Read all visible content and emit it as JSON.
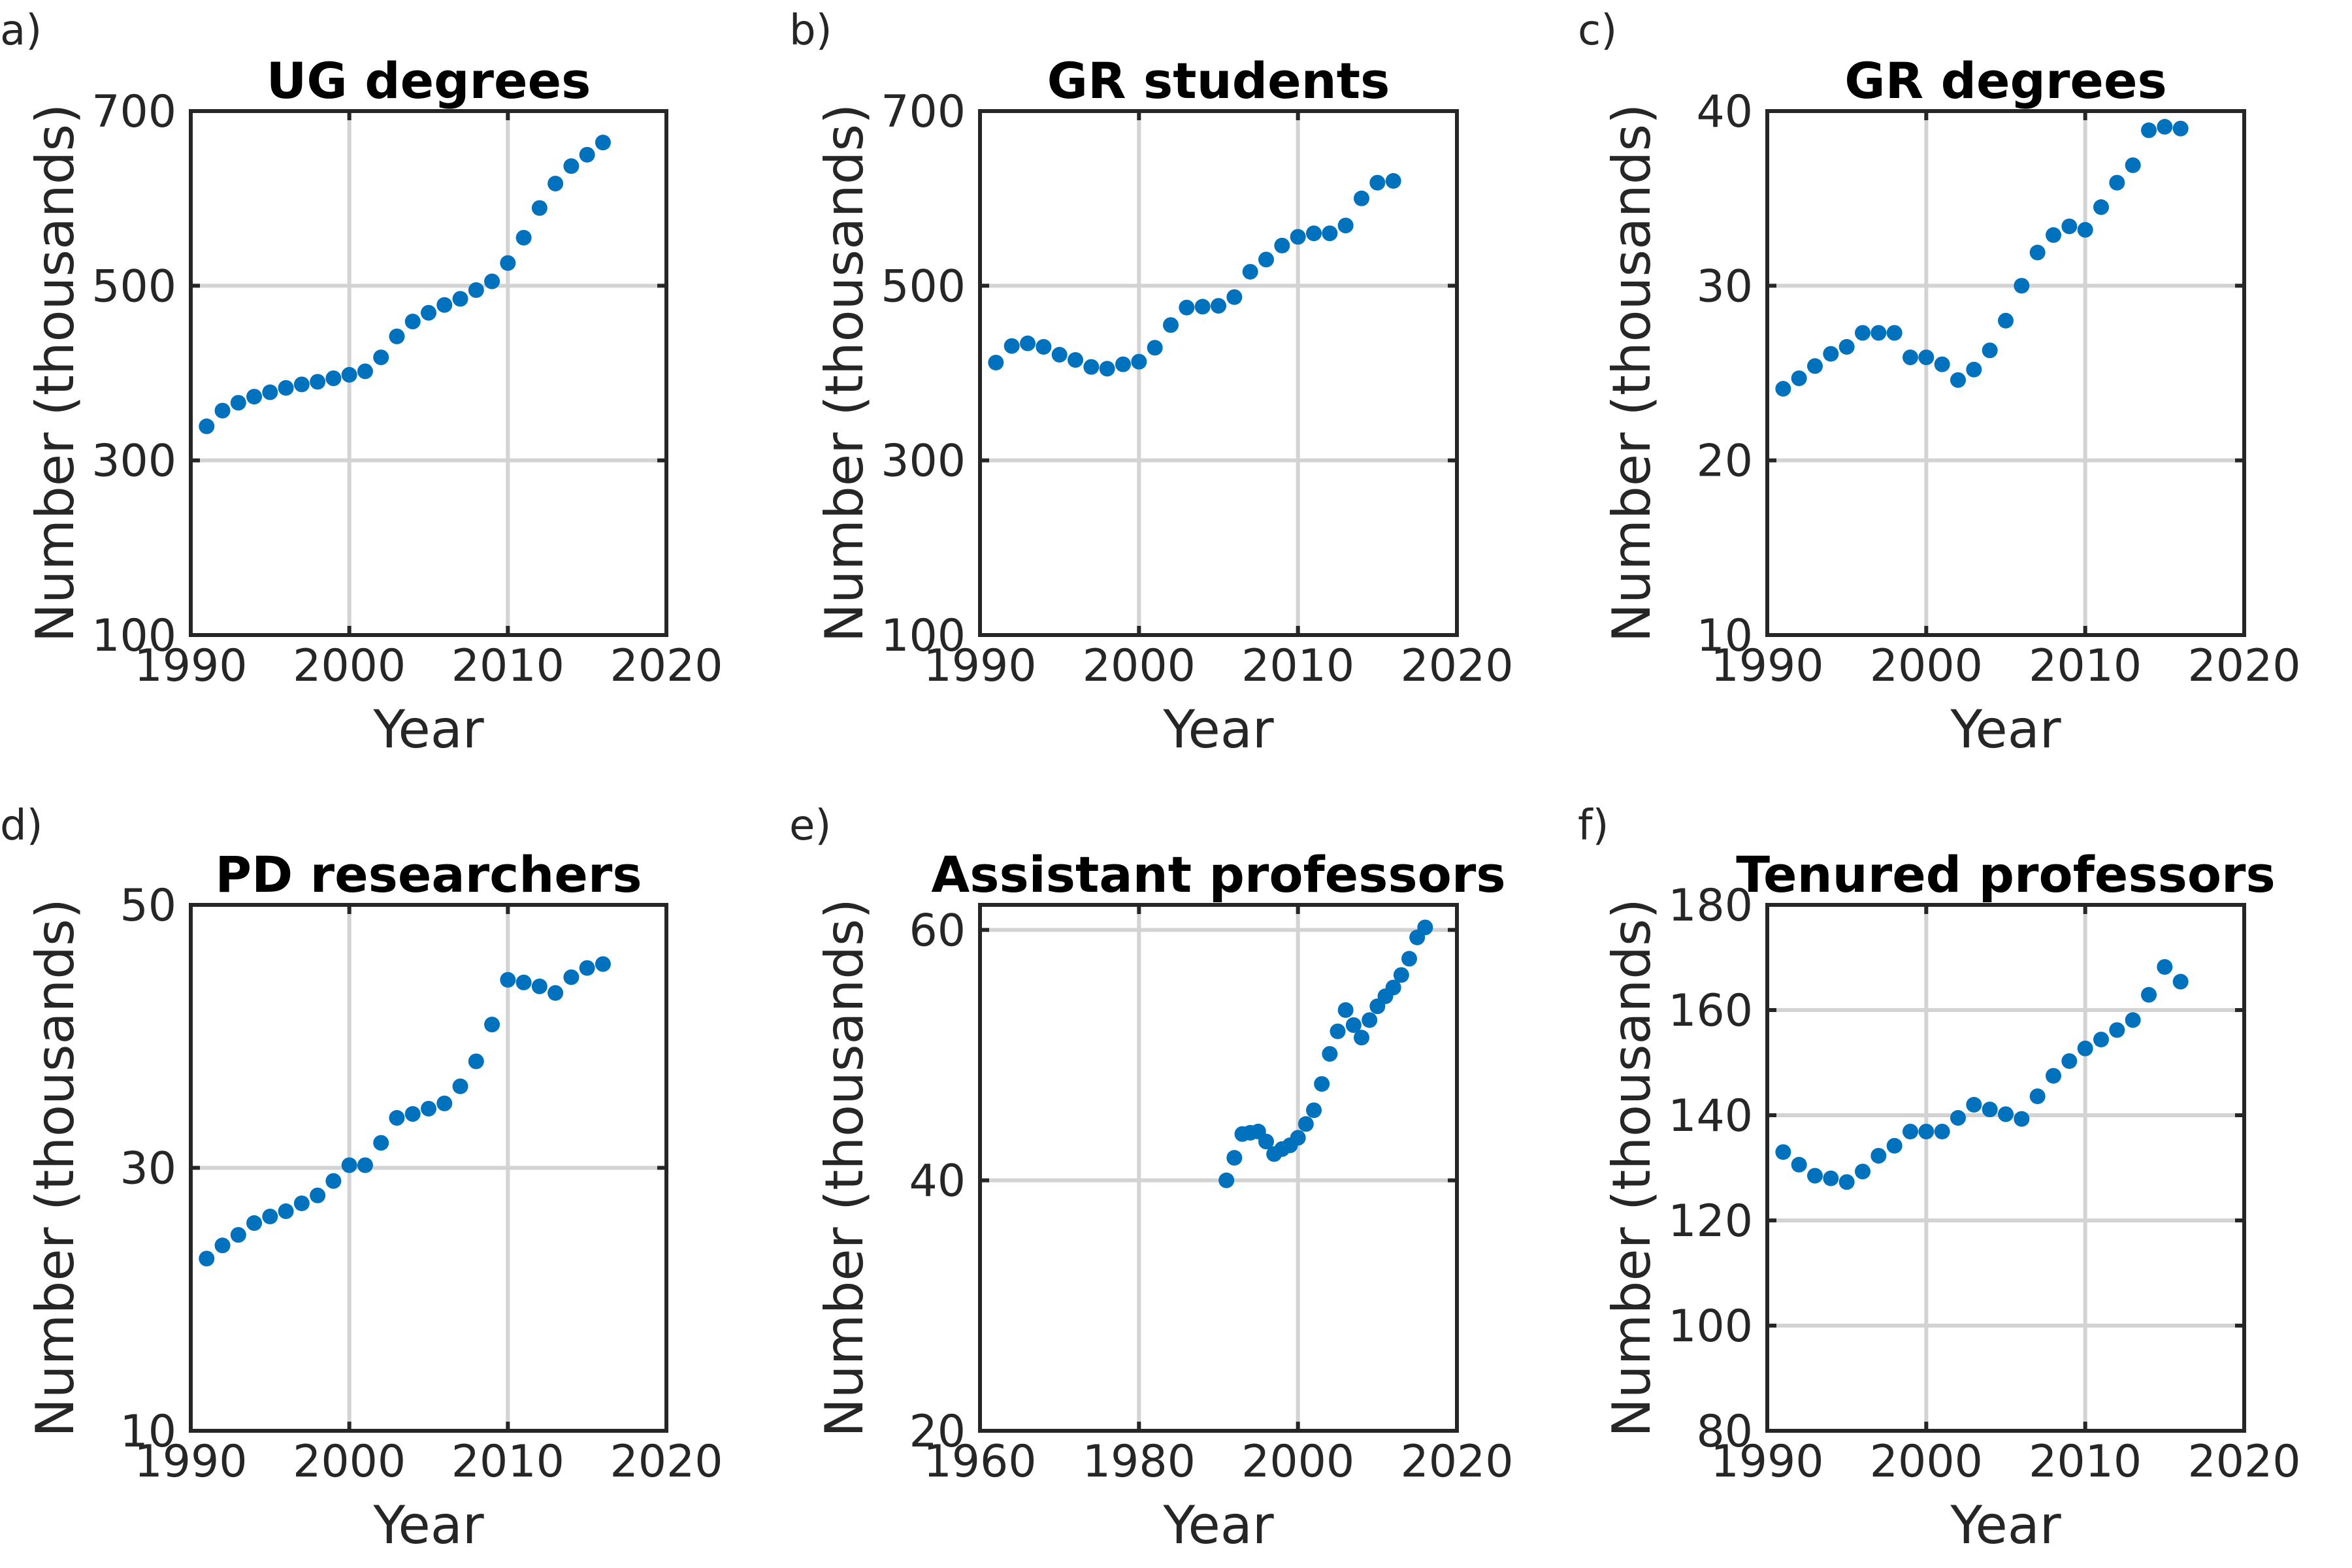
{
  "chart_data": [
    {
      "type": "scatter",
      "panel_letter": "a)",
      "title": "UG degrees",
      "xlabel": "Year",
      "ylabel": "Number (thousands)",
      "xlim": [
        1990,
        2020
      ],
      "ylim": [
        100,
        700
      ],
      "xticks": [
        1990,
        2000,
        2010,
        2020
      ],
      "yticks": [
        100,
        300,
        500,
        700
      ],
      "grid": true,
      "series": [
        {
          "color": "#0072BD",
          "x": [
            1991,
            1992,
            1993,
            1994,
            1995,
            1996,
            1997,
            1998,
            1999,
            2000,
            2001,
            2002,
            2003,
            2004,
            2005,
            2006,
            2007,
            2008,
            2009,
            2010,
            2011,
            2012,
            2013,
            2014,
            2015,
            2016
          ],
          "y": [
            339,
            357,
            366,
            373,
            378,
            383,
            387,
            390,
            394,
            398,
            402,
            418,
            442,
            459,
            469,
            478,
            485,
            495,
            505,
            526,
            555,
            589,
            617,
            637,
            650,
            664
          ]
        }
      ]
    },
    {
      "type": "scatter",
      "panel_letter": "b)",
      "title": "GR students",
      "xlabel": "Year",
      "ylabel": "Number (thousands)",
      "xlim": [
        1990,
        2020
      ],
      "ylim": [
        100,
        700
      ],
      "xticks": [
        1990,
        2000,
        2010,
        2020
      ],
      "yticks": [
        100,
        300,
        500,
        700
      ],
      "grid": true,
      "series": [
        {
          "color": "#0072BD",
          "x": [
            1991,
            1992,
            1993,
            1994,
            1995,
            1996,
            1997,
            1998,
            1999,
            2000,
            2001,
            2002,
            2003,
            2004,
            2005,
            2006,
            2007,
            2008,
            2009,
            2010,
            2011,
            2012,
            2013,
            2014,
            2015,
            2016
          ],
          "y": [
            412,
            431,
            434,
            430,
            421,
            415,
            407,
            405,
            410,
            413,
            429,
            455,
            475,
            476,
            477,
            487,
            516,
            530,
            546,
            556,
            560,
            560,
            569,
            600,
            618,
            620
          ]
        }
      ]
    },
    {
      "type": "scatter",
      "panel_letter": "c)",
      "title": "GR degrees",
      "xlabel": "Year",
      "ylabel": "Number (thousands)",
      "xlim": [
        1990,
        2020
      ],
      "ylim": [
        10,
        40
      ],
      "xticks": [
        1990,
        2000,
        2010,
        2020
      ],
      "yticks": [
        10,
        20,
        30,
        40
      ],
      "grid": true,
      "series": [
        {
          "color": "#0072BD",
          "x": [
            1991,
            1992,
            1993,
            1994,
            1995,
            1996,
            1997,
            1998,
            1999,
            2000,
            2001,
            2002,
            2003,
            2004,
            2005,
            2006,
            2007,
            2008,
            2009,
            2010,
            2011,
            2012,
            2013,
            2014,
            2015,
            2016
          ],
          "y": [
            24.1,
            24.7,
            25.4,
            26.1,
            26.5,
            27.3,
            27.3,
            27.3,
            25.9,
            25.9,
            25.5,
            24.6,
            25.2,
            26.3,
            28.0,
            30.0,
            31.9,
            32.9,
            33.4,
            33.2,
            34.5,
            35.9,
            36.9,
            38.9,
            39.1,
            39.0
          ]
        }
      ]
    },
    {
      "type": "scatter",
      "panel_letter": "d)",
      "title": "PD researchers",
      "xlabel": "Year",
      "ylabel": "Number (thousands)",
      "xlim": [
        1990,
        2020
      ],
      "ylim": [
        10,
        50
      ],
      "xticks": [
        1990,
        2000,
        2010,
        2020
      ],
      "yticks": [
        10,
        30,
        50
      ],
      "grid": true,
      "series": [
        {
          "color": "#0072BD",
          "x": [
            1991,
            1992,
            1993,
            1994,
            1995,
            1996,
            1997,
            1998,
            1999,
            2000,
            2001,
            2002,
            2003,
            2004,
            2005,
            2006,
            2007,
            2008,
            2009,
            2010,
            2011,
            2012,
            2013,
            2014,
            2015,
            2016
          ],
          "y": [
            23.1,
            24.1,
            24.9,
            25.8,
            26.3,
            26.7,
            27.3,
            27.9,
            29.0,
            30.2,
            30.2,
            31.9,
            33.8,
            34.1,
            34.5,
            34.9,
            36.2,
            38.1,
            40.9,
            44.3,
            44.1,
            43.8,
            43.3,
            44.5,
            45.2,
            45.5
          ]
        }
      ]
    },
    {
      "type": "scatter",
      "panel_letter": "e)",
      "title": "Assistant professors",
      "xlabel": "Year",
      "ylabel": "Number (thousands)",
      "xlim": [
        1960,
        2020
      ],
      "ylim": [
        20,
        62
      ],
      "xticks": [
        1960,
        1980,
        2000,
        2020
      ],
      "yticks": [
        20,
        40,
        60
      ],
      "grid": true,
      "series": [
        {
          "color": "#0072BD",
          "x": [
            1991,
            1992,
            1993,
            1994,
            1995,
            1996,
            1997,
            1998,
            1999,
            2000,
            2001,
            2002,
            2003,
            2004,
            2005,
            2006,
            2007,
            2008,
            2009,
            2010,
            2011,
            2012,
            2013,
            2014,
            2015,
            2016
          ],
          "y": [
            40.0,
            41.8,
            43.7,
            43.8,
            43.9,
            43.1,
            42.1,
            42.5,
            42.8,
            43.4,
            44.5,
            45.6,
            47.7,
            50.1,
            51.9,
            53.6,
            52.4,
            51.4,
            52.8,
            53.9,
            54.7,
            55.4,
            56.4,
            57.7,
            59.4,
            60.2
          ]
        }
      ]
    },
    {
      "type": "scatter",
      "panel_letter": "f)",
      "title": "Tenured professors",
      "xlabel": "Year",
      "ylabel": "Number (thousands)",
      "xlim": [
        1990,
        2020
      ],
      "ylim": [
        80,
        180
      ],
      "xticks": [
        1990,
        2000,
        2010,
        2020
      ],
      "yticks": [
        80,
        100,
        120,
        140,
        160,
        180
      ],
      "grid": true,
      "series": [
        {
          "color": "#0072BD",
          "x": [
            1991,
            1992,
            1993,
            1994,
            1995,
            1996,
            1997,
            1998,
            1999,
            2000,
            2001,
            2002,
            2003,
            2004,
            2005,
            2006,
            2007,
            2008,
            2009,
            2010,
            2011,
            2012,
            2013,
            2014,
            2015,
            2016
          ],
          "y": [
            133,
            130.6,
            128.5,
            128,
            127.3,
            129.3,
            132.3,
            134.2,
            136.9,
            136.9,
            136.9,
            139.5,
            142,
            141.1,
            140.2,
            139.3,
            143.6,
            147.5,
            150.3,
            152.7,
            154.4,
            156.2,
            158.1,
            162.9,
            168.2,
            165.4
          ]
        }
      ]
    }
  ]
}
